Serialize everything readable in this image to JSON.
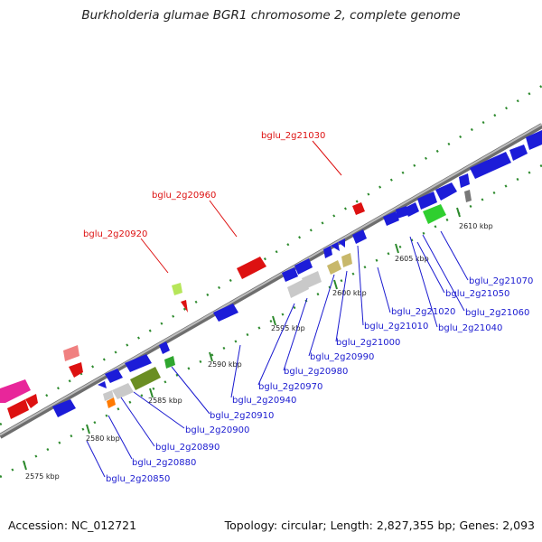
{
  "title": "Burkholderia glumae BGR1 chromosome 2, complete genome",
  "footer": {
    "accession": "Accession: NC_012721",
    "summary": "Topology: circular; Length: 2,827,355 bp; Genes: 2,093"
  },
  "colors": {
    "axis": "#8a8a8a",
    "gc_dots": "#2d8a2d",
    "forward_gene": "#1c1cd8",
    "highlight_label": "#dd1111",
    "normal_label": "#1a1ad0"
  },
  "ticks": [
    "2575 kbp",
    "2580 kbp",
    "2585 kbp",
    "2590 kbp",
    "2595 kbp",
    "2600 kbp",
    "2605 kbp",
    "2610 kbp"
  ],
  "labels_upper": [
    "bglu_2g20920",
    "bglu_2g20960",
    "bglu_2g21030"
  ],
  "labels_lower": [
    "bglu_2g20850",
    "bglu_2g20880",
    "bglu_2g20890",
    "bglu_2g20900",
    "bglu_2g20910",
    "bglu_2g20940",
    "bglu_2g20970",
    "bglu_2g20980",
    "bglu_2g20990",
    "bglu_2g21000",
    "bglu_2g21010",
    "bglu_2g21020",
    "bglu_2g21040",
    "bglu_2g21060",
    "bglu_2g21050",
    "bglu_2g21070"
  ]
}
